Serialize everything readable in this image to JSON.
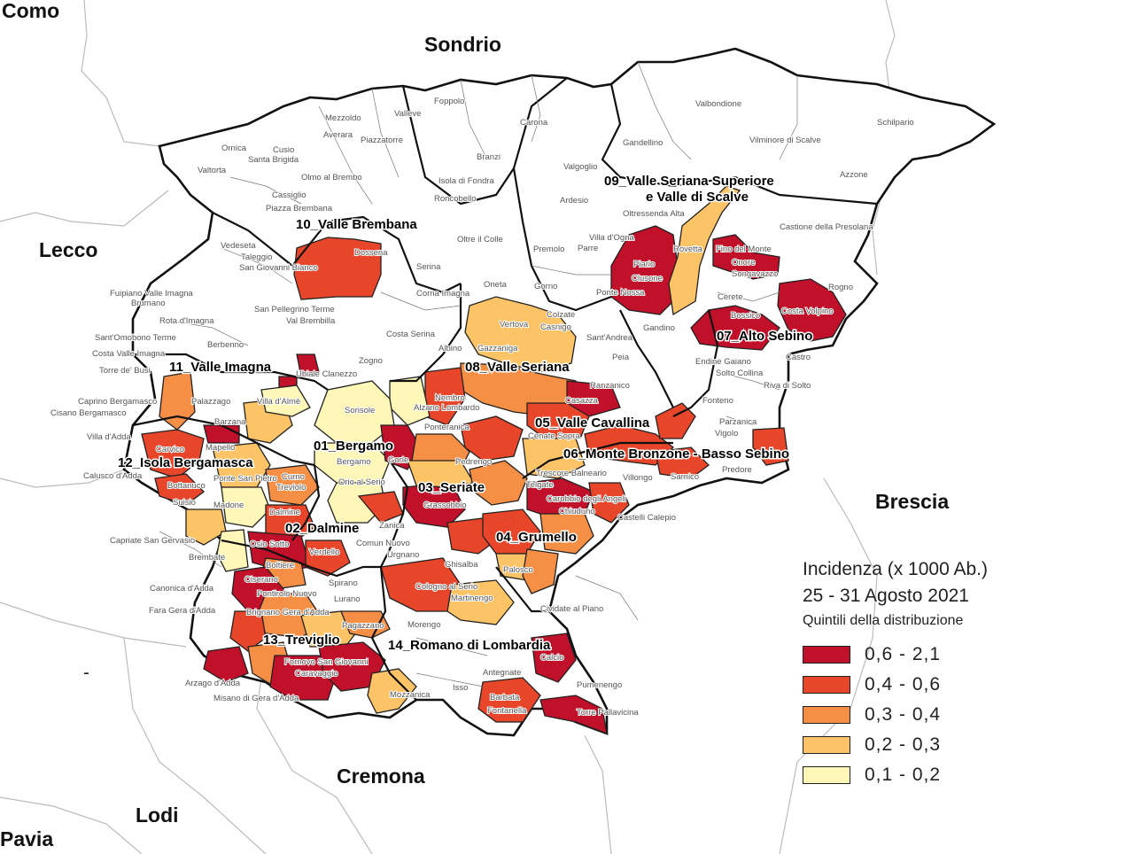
{
  "regions": [
    {
      "name": "Como"
    },
    {
      "name": "Sondrio"
    },
    {
      "name": "Lecco"
    },
    {
      "name": "Brescia"
    },
    {
      "name": "Cremona"
    },
    {
      "name": "Lodi"
    },
    {
      "name": "Pavia"
    }
  ],
  "districts": [
    {
      "name": "10_Valle Brembana"
    },
    {
      "name": "09_Valle Seriana Superiore"
    },
    {
      "name": "e Valle di Scalve"
    },
    {
      "name": "07_Alto Sebino"
    },
    {
      "name": "11_Valle Imagna"
    },
    {
      "name": "08_Valle Seriana"
    },
    {
      "name": "05_Valle Cavallina"
    },
    {
      "name": "01_Bergamo"
    },
    {
      "name": "06_Monte Bronzone - Basso Sebino"
    },
    {
      "name": "12_Isola Bergamasca"
    },
    {
      "name": "03_Seriate"
    },
    {
      "name": "02_Dalmine"
    },
    {
      "name": "04_Grumello"
    },
    {
      "name": "13_Treviglio"
    },
    {
      "name": "14_Romano di Lombardia"
    }
  ],
  "municipalities": [
    {
      "name": "Foppolo"
    },
    {
      "name": "Valbondione"
    },
    {
      "name": "Schilpario"
    },
    {
      "name": "Mezzoldo"
    },
    {
      "name": "Valleve"
    },
    {
      "name": "Carona"
    },
    {
      "name": "Averara"
    },
    {
      "name": "Piazzatorre"
    },
    {
      "name": "Gandellino"
    },
    {
      "name": "Vilminore di Scalve"
    },
    {
      "name": "Ornica"
    },
    {
      "name": "Cusio"
    },
    {
      "name": "Santa Brigida"
    },
    {
      "name": "Branzi"
    },
    {
      "name": "Valtorta"
    },
    {
      "name": "Valgoglio"
    },
    {
      "name": "Azzone"
    },
    {
      "name": "Olmo al Brembo"
    },
    {
      "name": "Isola di Fondra"
    },
    {
      "name": "Cassiglio"
    },
    {
      "name": "Vedeseta"
    },
    {
      "name": "Roncobello"
    },
    {
      "name": "Ardesio"
    },
    {
      "name": "Piazza Brembana"
    },
    {
      "name": "Oltressenda Alta"
    },
    {
      "name": "Castione della Presolana"
    },
    {
      "name": "Oltre il Colle"
    },
    {
      "name": "Villa d'Ogna"
    },
    {
      "name": "Rovetta"
    },
    {
      "name": "Fino del Monte"
    },
    {
      "name": "Taleggio"
    },
    {
      "name": "Dossena"
    },
    {
      "name": "Premolo"
    },
    {
      "name": "Parre"
    },
    {
      "name": "Piario"
    },
    {
      "name": "San Giovanni Bianco"
    },
    {
      "name": "Serina"
    },
    {
      "name": "Onore"
    },
    {
      "name": "Clusone"
    },
    {
      "name": "Songavazzo"
    },
    {
      "name": "Oneta"
    },
    {
      "name": "Gorno"
    },
    {
      "name": "Rogno"
    },
    {
      "name": "Fuipiano Valle Imagna"
    },
    {
      "name": "Corna Imagna"
    },
    {
      "name": "Ponte Nossa"
    },
    {
      "name": "Cerete"
    },
    {
      "name": "Brumano"
    },
    {
      "name": "San Pellegrino Terme"
    },
    {
      "name": "Costa Volpino"
    },
    {
      "name": "Colzate"
    },
    {
      "name": "Bossico"
    },
    {
      "name": "Rota d'Imagna"
    },
    {
      "name": "Val Brembilla"
    },
    {
      "name": "Vertova"
    },
    {
      "name": "Casnigo"
    },
    {
      "name": "Gandino"
    },
    {
      "name": "Sant'Omobono Terme"
    },
    {
      "name": "Costa Serina"
    },
    {
      "name": "Gazzaniga"
    },
    {
      "name": "Sant'Andrea"
    },
    {
      "name": "Berbenno"
    },
    {
      "name": "Costa Valle Imagna"
    },
    {
      "name": "Albino"
    },
    {
      "name": "Peia"
    },
    {
      "name": "Castro"
    },
    {
      "name": "Torre de' Busi"
    },
    {
      "name": "Zogno"
    },
    {
      "name": "Endine Gaiano"
    },
    {
      "name": "Solto Collina"
    },
    {
      "name": "Ubiale Clanezzo"
    },
    {
      "name": "Ranzanico"
    },
    {
      "name": "Riva di Solto"
    },
    {
      "name": "Caprino Bergamasco"
    },
    {
      "name": "Palazzago"
    },
    {
      "name": "Villa d'Almè"
    },
    {
      "name": "Nembro"
    },
    {
      "name": "Alzano Lombardo"
    },
    {
      "name": "Casazza"
    },
    {
      "name": "Fonteno"
    },
    {
      "name": "Cisano Bergamasco"
    },
    {
      "name": "Sorisole"
    },
    {
      "name": "Barzana"
    },
    {
      "name": "Parzanica"
    },
    {
      "name": "Villa d'Adda"
    },
    {
      "name": "Ponteranica"
    },
    {
      "name": "Vigolo"
    },
    {
      "name": "Cenate Sopra"
    },
    {
      "name": "Mapello"
    },
    {
      "name": "Carvico"
    },
    {
      "name": "Gorle"
    },
    {
      "name": "Pedrengo"
    },
    {
      "name": "Predore"
    },
    {
      "name": "Bergamo"
    },
    {
      "name": "Trescore Balneario"
    },
    {
      "name": "Sarnico"
    },
    {
      "name": "Calusco d'Adda"
    },
    {
      "name": "Curno"
    },
    {
      "name": "Ponte San Pietro"
    },
    {
      "name": "Bottanuco"
    },
    {
      "name": "Orio al Serio"
    },
    {
      "name": "Telgate"
    },
    {
      "name": "Villongo"
    },
    {
      "name": "Treviolo"
    },
    {
      "name": "Suisio"
    },
    {
      "name": "Madone"
    },
    {
      "name": "Carobbio degli Angeli"
    },
    {
      "name": "Chiuduno"
    },
    {
      "name": "Grassobbio"
    },
    {
      "name": "Dalmine"
    },
    {
      "name": "Capriate San Gervasio"
    },
    {
      "name": "Zanica"
    },
    {
      "name": "Castelli Calepio"
    },
    {
      "name": "Osio Sotto"
    },
    {
      "name": "Comun Nuovo"
    },
    {
      "name": "Urgnano"
    },
    {
      "name": "Brembate"
    },
    {
      "name": "Verdello"
    },
    {
      "name": "Boltiere"
    },
    {
      "name": "Ghisalba"
    },
    {
      "name": "Palosco"
    },
    {
      "name": "Ciserano"
    },
    {
      "name": "Spirano"
    },
    {
      "name": "Canonica d'Adda"
    },
    {
      "name": "Pontirolo Nuovo"
    },
    {
      "name": "Lurano"
    },
    {
      "name": "Cologno al Serio"
    },
    {
      "name": "Martinengo"
    },
    {
      "name": "Fara Gera d'Adda"
    },
    {
      "name": "Brignano Gera d'Adda"
    },
    {
      "name": "Cividate al Piano"
    },
    {
      "name": "Morengo"
    },
    {
      "name": "Pagazzano"
    },
    {
      "name": "Fornovo San Giovanni"
    },
    {
      "name": "Calcio"
    },
    {
      "name": "Caravaggio"
    },
    {
      "name": "Antegnate"
    },
    {
      "name": "Arzago d'Adda"
    },
    {
      "name": "Pumenengo"
    },
    {
      "name": "Isso"
    },
    {
      "name": "Misano di Gera d'Adda"
    },
    {
      "name": "Mozzanica"
    },
    {
      "name": "Barbata"
    },
    {
      "name": "Fontanella"
    },
    {
      "name": "Torre Pallavicina"
    }
  ],
  "legend": {
    "title": "Incidenza (x 1000 Ab.)",
    "period": "25 - 31 Agosto 2021",
    "subtitle": "Quintili della distribuzione",
    "classes": [
      {
        "label": "0,6 - 2,1",
        "color": "#c0102a"
      },
      {
        "label": "0,4 - 0,6",
        "color": "#e8462a"
      },
      {
        "label": "0,3 - 0,4",
        "color": "#f58f45"
      },
      {
        "label": "0,2 - 0,3",
        "color": "#fcc466"
      },
      {
        "label": "0,1 - 0,2",
        "color": "#fef7b8"
      }
    ]
  },
  "misc": {
    "dash": "-"
  }
}
